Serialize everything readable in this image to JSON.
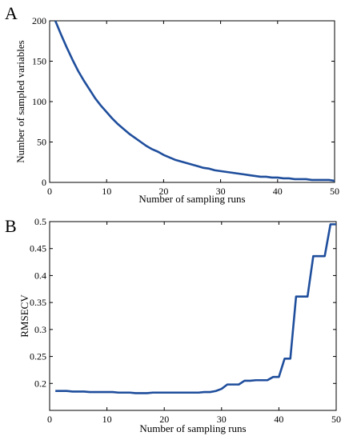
{
  "chart_data": [
    {
      "panel": "A",
      "type": "line",
      "xlabel": "Number of sampling runs",
      "ylabel": "Number of sampled variables",
      "xlim": [
        0,
        50
      ],
      "ylim": [
        0,
        200
      ],
      "xticks": [
        0,
        10,
        20,
        30,
        40,
        50
      ],
      "yticks": [
        0,
        50,
        100,
        150,
        200
      ],
      "xtick_labels": [
        "0",
        "10",
        "20",
        "30",
        "40",
        "50"
      ],
      "ytick_labels": [
        "0",
        "50",
        "100",
        "150",
        "200"
      ],
      "series_color": "#1f4e9c",
      "x": [
        1,
        2,
        3,
        4,
        5,
        6,
        7,
        8,
        9,
        10,
        11,
        12,
        13,
        14,
        15,
        16,
        17,
        18,
        19,
        20,
        21,
        22,
        23,
        24,
        25,
        26,
        27,
        28,
        29,
        30,
        31,
        32,
        33,
        34,
        35,
        36,
        37,
        38,
        39,
        40,
        41,
        42,
        43,
        44,
        45,
        46,
        47,
        48,
        49,
        50
      ],
      "y": [
        200,
        183,
        167,
        152,
        138,
        126,
        115,
        104,
        95,
        87,
        79,
        72,
        66,
        60,
        55,
        50,
        45,
        41,
        38,
        34,
        31,
        28,
        26,
        24,
        22,
        20,
        18,
        17,
        15,
        14,
        13,
        12,
        11,
        10,
        9,
        8,
        7,
        7,
        6,
        6,
        5,
        5,
        4,
        4,
        4,
        3,
        3,
        3,
        3,
        2
      ]
    },
    {
      "panel": "B",
      "type": "line",
      "xlabel": "Number of sampling runs",
      "ylabel": "RMSECV",
      "xlim": [
        0,
        50
      ],
      "ylim": [
        0.15,
        0.5
      ],
      "xticks": [
        0,
        10,
        20,
        30,
        40,
        50
      ],
      "yticks": [
        0.2,
        0.25,
        0.3,
        0.35,
        0.4,
        0.45,
        0.5
      ],
      "xtick_labels": [
        "0",
        "10",
        "20",
        "30",
        "40",
        "50"
      ],
      "ytick_labels": [
        "0.2",
        "0.25",
        "0.3",
        "0.35",
        "0.4",
        "0.45",
        "0.5"
      ],
      "series_color": "#1f4e9c",
      "x": [
        1,
        2,
        3,
        4,
        5,
        6,
        7,
        8,
        9,
        10,
        11,
        12,
        13,
        14,
        15,
        16,
        17,
        18,
        19,
        20,
        21,
        22,
        23,
        24,
        25,
        26,
        27,
        28,
        29,
        30,
        31,
        32,
        33,
        34,
        35,
        36,
        37,
        38,
        39,
        40,
        41,
        42,
        43,
        44,
        45,
        46,
        47,
        48,
        49,
        50
      ],
      "y": [
        0.186,
        0.186,
        0.186,
        0.185,
        0.185,
        0.185,
        0.184,
        0.184,
        0.184,
        0.184,
        0.184,
        0.183,
        0.183,
        0.183,
        0.182,
        0.182,
        0.182,
        0.183,
        0.183,
        0.183,
        0.183,
        0.183,
        0.183,
        0.183,
        0.183,
        0.183,
        0.184,
        0.184,
        0.186,
        0.19,
        0.198,
        0.198,
        0.198,
        0.205,
        0.205,
        0.206,
        0.206,
        0.206,
        0.212,
        0.212,
        0.246,
        0.246,
        0.361,
        0.361,
        0.361,
        0.436,
        0.436,
        0.436,
        0.495,
        0.495
      ]
    }
  ]
}
